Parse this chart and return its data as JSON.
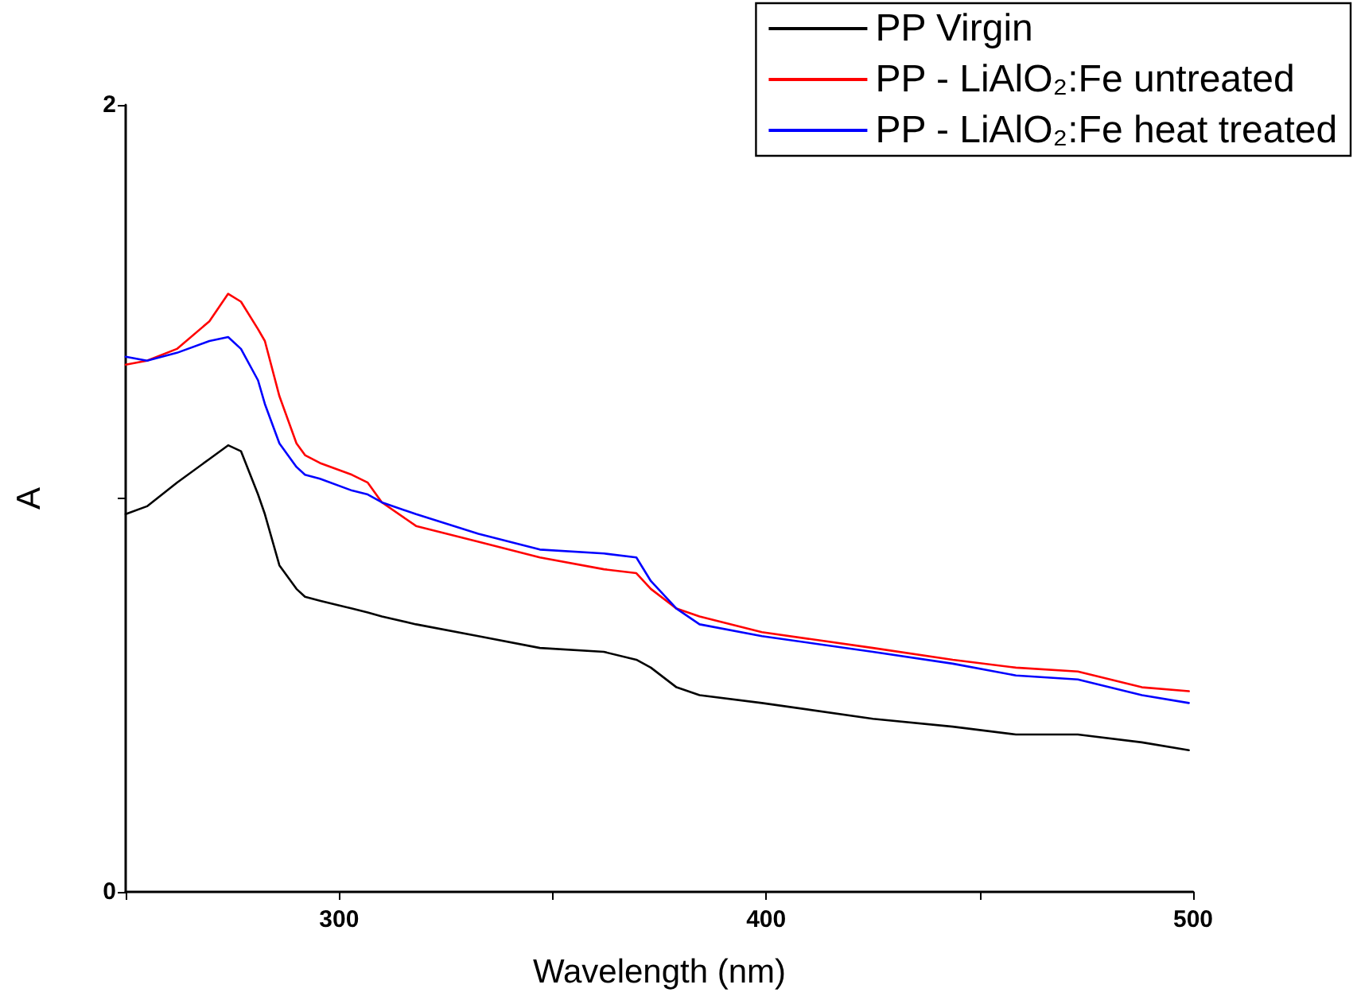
{
  "chart_data": {
    "type": "line",
    "xlabel": "Wavelength (nm)",
    "ylabel": "A",
    "xlim": [
      250,
      500
    ],
    "xticks": [
      {
        "value": 250,
        "label": null
      },
      300,
      {
        "value": 350,
        "label": null
      },
      400,
      {
        "value": 450,
        "label": null
      },
      500
    ],
    "ylim": [
      0,
      2
    ],
    "yticks": [
      0,
      {
        "value": 1,
        "label": null
      },
      2
    ],
    "grid": false,
    "legend": "top right",
    "marker": "none",
    "line_style": "solid",
    "x": [
      250,
      255,
      262,
      269.6,
      274,
      277,
      281,
      282.6,
      286,
      290,
      292,
      295.5,
      303,
      306.7,
      310,
      318,
      332.6,
      347,
      362,
      369.6,
      373,
      379,
      384.4,
      399,
      425,
      443.7,
      458.5,
      473,
      488,
      499
    ],
    "series": [
      {
        "name": "PP Virgin",
        "color": "#000000",
        "values": [
          0.96,
          0.98,
          1.04,
          1.1,
          1.135,
          1.12,
          1.01,
          0.96,
          0.83,
          0.77,
          0.75,
          0.74,
          0.72,
          0.71,
          0.7,
          0.68,
          0.65,
          0.62,
          0.61,
          0.59,
          0.57,
          0.52,
          0.5,
          0.48,
          0.44,
          0.42,
          0.4,
          0.4,
          0.38,
          0.36
        ]
      },
      {
        "name": "PP - LiAlO₂:Fe untreated",
        "color": "#ff0000",
        "values": [
          1.34,
          1.35,
          1.38,
          1.45,
          1.52,
          1.5,
          1.43,
          1.4,
          1.26,
          1.14,
          1.11,
          1.09,
          1.06,
          1.04,
          0.99,
          0.93,
          0.89,
          0.85,
          0.82,
          0.81,
          0.77,
          0.72,
          0.7,
          0.66,
          0.62,
          0.59,
          0.57,
          0.56,
          0.52,
          0.51
        ]
      },
      {
        "name": "PP - LiAlO₂:Fe heat treated",
        "color": "#0000ff",
        "values": [
          1.36,
          1.35,
          1.37,
          1.4,
          1.41,
          1.38,
          1.3,
          1.24,
          1.14,
          1.08,
          1.06,
          1.05,
          1.02,
          1.01,
          0.99,
          0.96,
          0.91,
          0.87,
          0.86,
          0.85,
          0.79,
          0.72,
          0.68,
          0.65,
          0.61,
          0.58,
          0.55,
          0.54,
          0.5,
          0.48
        ]
      }
    ]
  }
}
